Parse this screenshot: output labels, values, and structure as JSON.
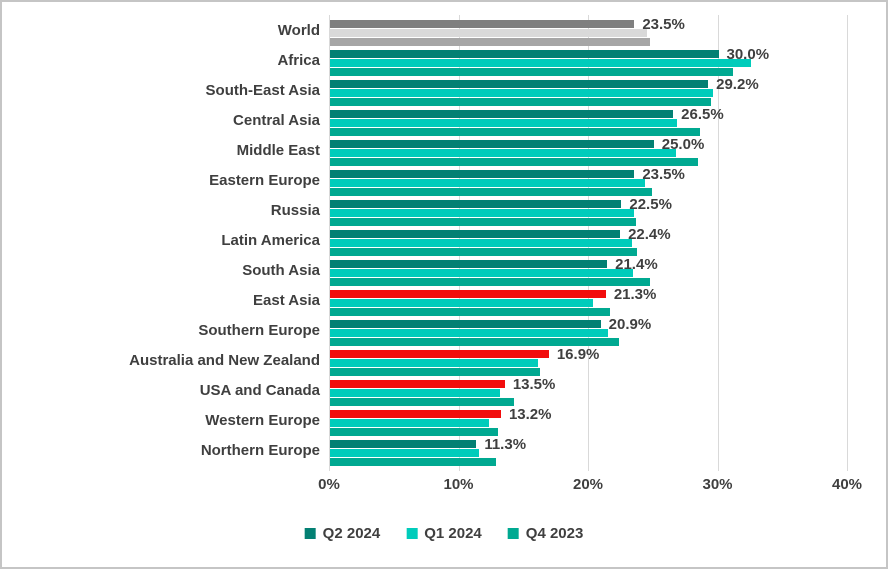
{
  "chart_data": {
    "type": "bar",
    "orientation": "horizontal",
    "title": "",
    "xlabel": "",
    "ylabel": "",
    "xlim": [
      0,
      40
    ],
    "xticks": [
      "0%",
      "10%",
      "20%",
      "30%",
      "40%"
    ],
    "grid": true,
    "legend_position": "bottom",
    "legend": [
      {
        "name": "Q2 2024",
        "color": "#038073"
      },
      {
        "name": "Q1 2024",
        "color": "#00CCBB"
      },
      {
        "name": "Q4 2023",
        "color": "#00A991"
      }
    ],
    "rows": [
      {
        "category": "World",
        "q2": 23.5,
        "q1": 24.5,
        "q4": 24.7,
        "label": "23.5%",
        "bar_colors": {
          "q2": "#7F7F7F",
          "q1": "#D9D9D9",
          "q4": "#A6A6A6"
        }
      },
      {
        "category": "Africa",
        "q2": 30.0,
        "q1": 32.5,
        "q4": 31.1,
        "label": "30.0%"
      },
      {
        "category": "South-East Asia",
        "q2": 29.2,
        "q1": 29.6,
        "q4": 29.4,
        "label": "29.2%"
      },
      {
        "category": "Central Asia",
        "q2": 26.5,
        "q1": 26.8,
        "q4": 28.6,
        "label": "26.5%"
      },
      {
        "category": "Middle East",
        "q2": 25.0,
        "q1": 26.7,
        "q4": 28.4,
        "label": "25.0%"
      },
      {
        "category": "Eastern Europe",
        "q2": 23.5,
        "q1": 24.3,
        "q4": 24.9,
        "label": "23.5%"
      },
      {
        "category": "Russia",
        "q2": 22.5,
        "q1": 23.5,
        "q4": 23.6,
        "label": "22.5%"
      },
      {
        "category": "Latin America",
        "q2": 22.4,
        "q1": 23.3,
        "q4": 23.7,
        "label": "22.4%"
      },
      {
        "category": "South Asia",
        "q2": 21.4,
        "q1": 23.4,
        "q4": 24.7,
        "label": "21.4%"
      },
      {
        "category": "East Asia",
        "q2": 21.3,
        "q1": 20.3,
        "q4": 21.6,
        "label": "21.3%",
        "bar_colors": {
          "q2": "#F20D0D"
        }
      },
      {
        "category": "Southern Europe",
        "q2": 20.9,
        "q1": 21.5,
        "q4": 22.3,
        "label": "20.9%"
      },
      {
        "category": "Australia and New Zealand",
        "q2": 16.9,
        "q1": 16.1,
        "q4": 16.2,
        "label": "16.9%",
        "bar_colors": {
          "q2": "#F20D0D"
        }
      },
      {
        "category": "USA and Canada",
        "q2": 13.5,
        "q1": 13.1,
        "q4": 14.2,
        "label": "13.5%",
        "bar_colors": {
          "q2": "#F20D0D"
        }
      },
      {
        "category": "Western Europe",
        "q2": 13.2,
        "q1": 12.3,
        "q4": 13.0,
        "label": "13.2%",
        "bar_colors": {
          "q2": "#F20D0D"
        }
      },
      {
        "category": "Northern Europe",
        "q2": 11.3,
        "q1": 11.5,
        "q4": 12.8,
        "label": "11.3%"
      }
    ]
  },
  "colors": {
    "text": "#3F3F3F",
    "grid": "#D9D9D9",
    "background": "#FFFFFF",
    "border": "#C5C5C5",
    "highlight_red": "#F20D0D",
    "world_gray_dark": "#7F7F7F",
    "world_gray_light": "#D9D9D9",
    "world_gray_mid": "#A6A6A6"
  }
}
